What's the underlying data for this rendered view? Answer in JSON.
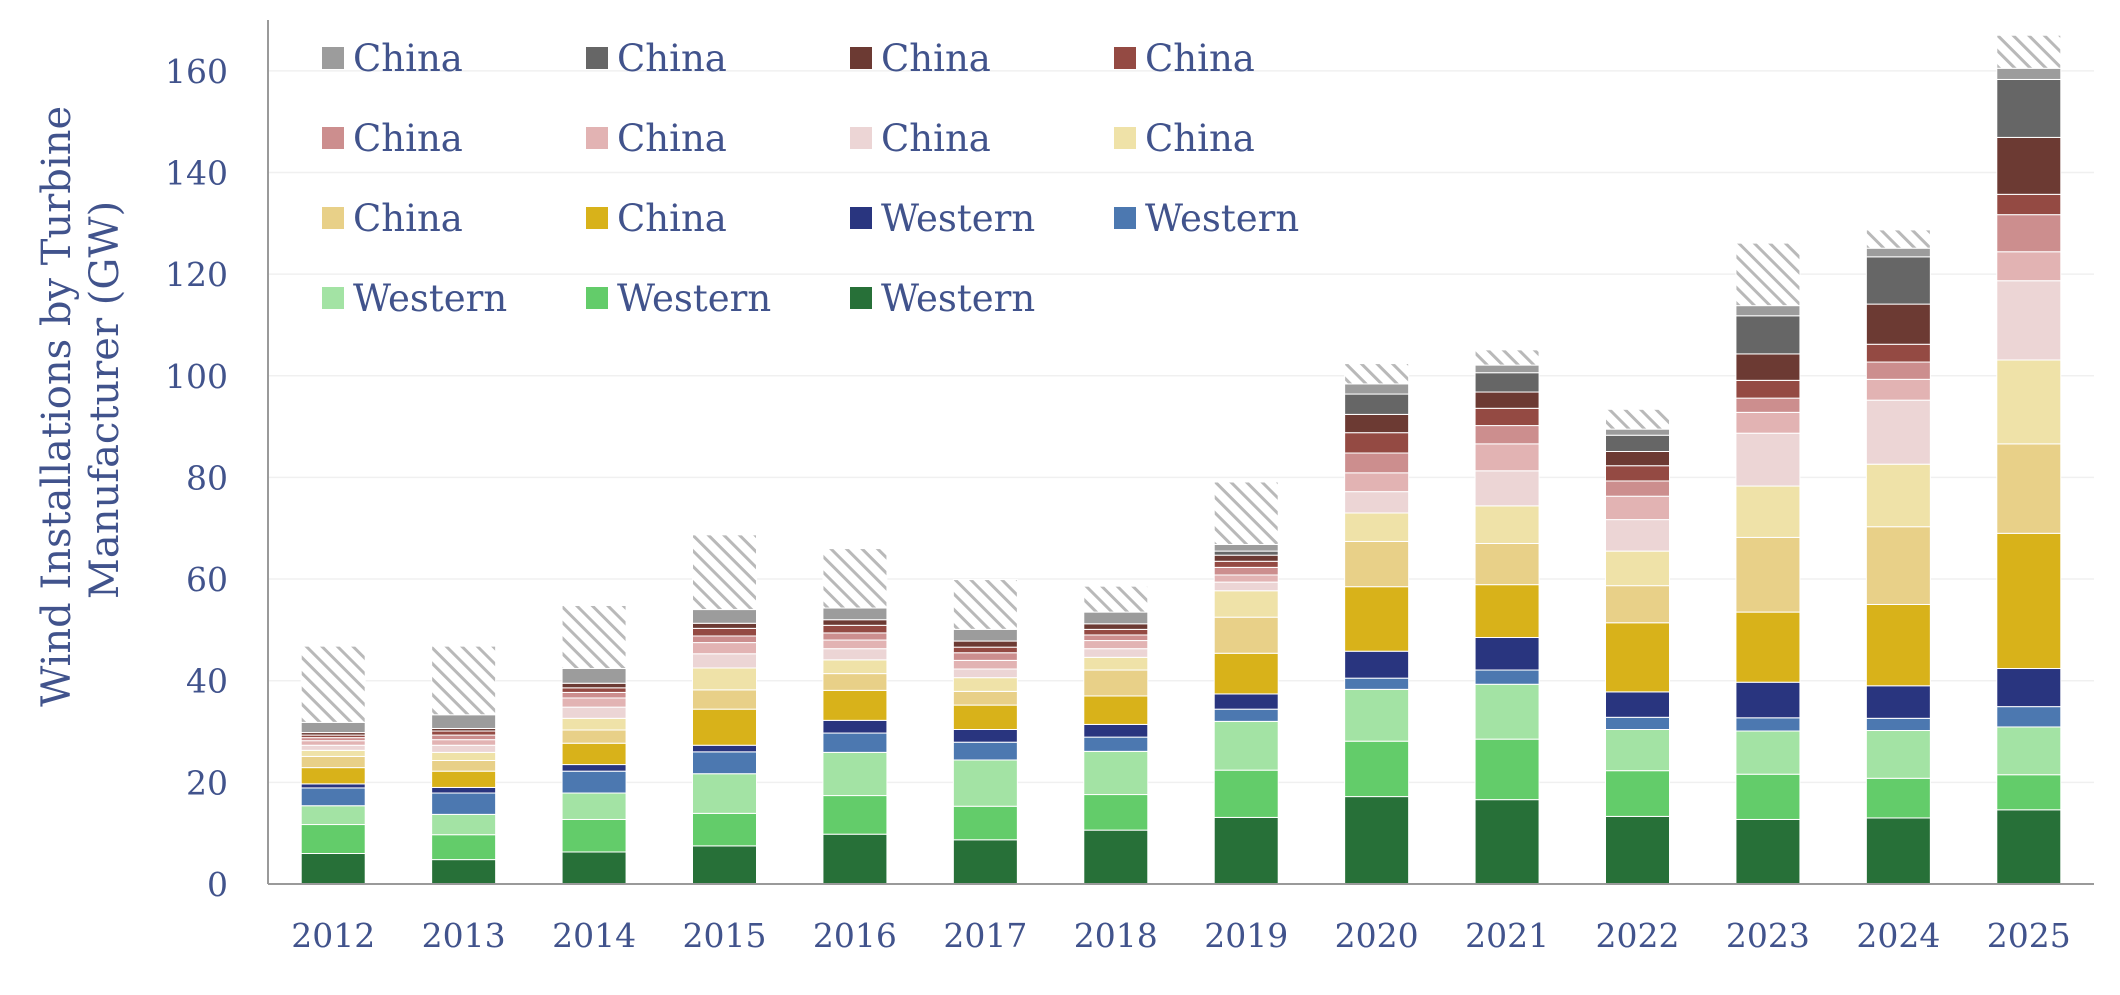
{
  "chart_data": {
    "type": "bar",
    "stacked": true,
    "title": "",
    "ylabel": "Wind Installations by Turbine Manufacturer (GW)",
    "ylabel_lines": [
      "Wind Installations by Turbine",
      "Manufacturer (GW)"
    ],
    "xlabel": "",
    "ylim": [
      0,
      170
    ],
    "yticks": [
      0,
      20,
      40,
      60,
      80,
      100,
      120,
      140,
      160
    ],
    "grid": true,
    "legend_position": "top-left",
    "categories": [
      "2012",
      "2013",
      "2014",
      "2015",
      "2016",
      "2017",
      "2018",
      "2019",
      "2020",
      "2021",
      "2022",
      "2023",
      "2024",
      "2025"
    ],
    "series": [
      {
        "name": "Western",
        "color": "#277038",
        "values": [
          6,
          4.8,
          6.3,
          7.5,
          9.8,
          8.7,
          10.6,
          13.1,
          17.2,
          16.6,
          13.3,
          12.7,
          13.0,
          14.6
        ]
      },
      {
        "name": "Western",
        "color": "#63cc6a",
        "values": [
          5.7,
          4.9,
          6.4,
          6.4,
          7.6,
          6.6,
          7,
          9.3,
          10.9,
          11.9,
          9,
          8.9,
          7.8,
          6.9
        ]
      },
      {
        "name": "Western",
        "color": "#a3e3a4",
        "values": [
          3.7,
          4,
          5.2,
          7.8,
          8.5,
          9.1,
          8.5,
          9.6,
          10.2,
          10.8,
          8.1,
          8.5,
          9.4,
          9.4
        ]
      },
      {
        "name": "Western",
        "color": "#4c78b0",
        "values": [
          3.5,
          4.2,
          4.3,
          4.3,
          3.8,
          3.5,
          2.8,
          2.4,
          2.2,
          2.8,
          2.4,
          2.6,
          2.4,
          4.0
        ]
      },
      {
        "name": "Western",
        "color": "#29357f",
        "values": [
          0.8,
          1.1,
          1.3,
          1.3,
          2.5,
          2.5,
          2.5,
          3.0,
          5.3,
          6.4,
          5.0,
          7.0,
          6.4,
          7.5
        ]
      },
      {
        "name": "China",
        "color": "#d8b21a",
        "values": [
          3.2,
          3.2,
          4.2,
          7.1,
          5.9,
          4.8,
          5.6,
          8,
          12.7,
          10.4,
          13.6,
          13.8,
          16,
          26.6
        ]
      },
      {
        "name": "China",
        "color": "#e8d088",
        "values": [
          2.2,
          2.1,
          2.6,
          3.8,
          3.3,
          2.7,
          5.1,
          7.1,
          8.9,
          8.1,
          7.3,
          14.7,
          15.3,
          17.6
        ]
      },
      {
        "name": "China",
        "color": "#efe2a8",
        "values": [
          1.2,
          1.6,
          2.3,
          4.3,
          2.7,
          2.7,
          2.5,
          5.2,
          5.6,
          7.4,
          6.8,
          10.1,
          12.3,
          16.5
        ]
      },
      {
        "name": "China",
        "color": "#ecd5d5",
        "values": [
          1,
          1.4,
          2.2,
          2.8,
          2.2,
          1.7,
          1.7,
          1.7,
          4.2,
          6.9,
          6.2,
          10.4,
          12.6,
          15.6
        ]
      },
      {
        "name": "China",
        "color": "#e2b3b3",
        "values": [
          0.9,
          1.1,
          1.8,
          2.2,
          1.7,
          1.7,
          1.6,
          1.4,
          3.7,
          5.3,
          4.6,
          4.1,
          4.1,
          5.7
        ]
      },
      {
        "name": "China",
        "color": "#cc8e8e",
        "values": [
          0.6,
          0.9,
          1.1,
          1.3,
          1.4,
          1.5,
          1.1,
          1.5,
          3.9,
          3.6,
          3.0,
          2.8,
          3.4,
          7.3
        ]
      },
      {
        "name": "China",
        "color": "#944a43",
        "values": [
          0.5,
          0.8,
          0.9,
          1.5,
          1.5,
          1.1,
          1.1,
          1.2,
          4.0,
          3.4,
          3.0,
          3.5,
          3.5,
          4.0
        ]
      },
      {
        "name": "China",
        "color": "#6c3a33",
        "values": [
          0.5,
          0.5,
          0.9,
          1.0,
          1.1,
          1.2,
          1.1,
          1.2,
          3.6,
          3.2,
          2.8,
          5.2,
          7.9,
          11.2
        ]
      },
      {
        "name": "China",
        "color": "#666666",
        "values": [
          0,
          0,
          0,
          0,
          0,
          0,
          0,
          0.8,
          4.0,
          3.8,
          3.2,
          7.5,
          9.3,
          11.4
        ]
      },
      {
        "name": "China",
        "color": "#9c9c9c",
        "values": [
          2.0,
          2.7,
          2.9,
          2.7,
          2.3,
          2.3,
          2.3,
          1.3,
          2.0,
          1.5,
          1.2,
          2.0,
          1.7,
          2.2
        ]
      },
      {
        "name": "",
        "color": "#c2c2c2",
        "pattern": "hatch",
        "values": [
          15.0,
          13.5,
          12.4,
          14.7,
          11.7,
          9.8,
          5.1,
          12.3,
          4.0,
          3.0,
          3.9,
          12.3,
          3.6,
          6.5
        ]
      }
    ],
    "legend_order": [
      14,
      13,
      12,
      11,
      10,
      9,
      8,
      7,
      6,
      5,
      4,
      3,
      2,
      1,
      0
    ]
  }
}
